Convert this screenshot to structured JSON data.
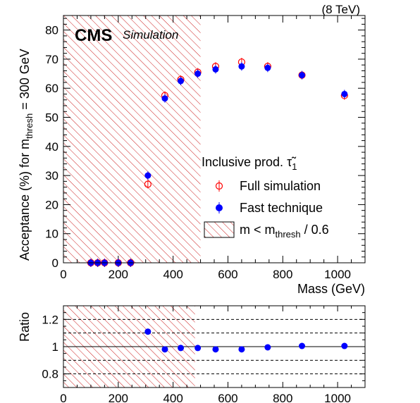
{
  "energy_label": "(8 TeV)",
  "cms_label": "CMS",
  "sim_label": "Simulation",
  "chart_data": [
    {
      "type": "scatter",
      "panel": "main",
      "xlabel": "Mass (GeV)",
      "ylabel_main": "Acceptance (%) for m",
      "ylabel_sub": "thresh",
      "ylabel_tail": " = 300 GeV",
      "xlim": [
        0,
        1100
      ],
      "ylim": [
        0,
        85
      ],
      "xticks": [
        0,
        200,
        400,
        600,
        800,
        1000
      ],
      "yticks": [
        0,
        10,
        20,
        30,
        40,
        50,
        60,
        70,
        80
      ],
      "hatched_region": [
        0,
        500
      ],
      "legend": {
        "title_text": "Inclusive prod. ",
        "title_symbol": "τ̃",
        "title_sub": "1",
        "hatch_main": "m < m",
        "hatch_sub": "thresh",
        "hatch_tail": " / 0.6"
      },
      "series": [
        {
          "name": "Full simulation",
          "color": "#ff0000",
          "marker": "open-circle",
          "x": [
            100,
            125,
            150,
            200,
            245,
            308,
            370,
            428,
            490,
            555,
            650,
            745,
            870,
            1025
          ],
          "y": [
            0,
            0,
            0,
            0,
            0,
            27,
            57.5,
            63,
            65.5,
            67.5,
            69,
            67.5,
            64.5,
            57.5
          ]
        },
        {
          "name": "Fast technique",
          "color": "#0000ff",
          "marker": "filled-circle",
          "x": [
            100,
            125,
            150,
            200,
            245,
            308,
            370,
            428,
            490,
            555,
            650,
            745,
            870,
            1025
          ],
          "y": [
            0,
            0,
            0,
            0,
            0,
            30,
            56.5,
            62.5,
            65,
            66.5,
            67.5,
            67,
            64.5,
            58
          ]
        }
      ]
    },
    {
      "type": "scatter",
      "panel": "ratio",
      "ylabel": "Ratio",
      "xlim": [
        0,
        1100
      ],
      "ylim": [
        0.7,
        1.3
      ],
      "xticks": [
        0,
        200,
        400,
        600,
        800,
        1000
      ],
      "yticks": [
        0.8,
        1,
        1.2
      ],
      "ytick_labels": [
        "0.8",
        "1",
        "1.2"
      ],
      "dashed_lines": [
        0.8,
        0.9,
        1.1,
        1.2
      ],
      "solid_line": 1,
      "hatched_region": [
        0,
        480
      ],
      "series": [
        {
          "color": "#0000ff",
          "marker": "filled-circle",
          "x": [
            308,
            370,
            428,
            490,
            555,
            650,
            745,
            870,
            1025
          ],
          "y": [
            1.11,
            0.98,
            0.99,
            0.99,
            0.98,
            0.98,
            0.995,
            1.005,
            1.005
          ]
        }
      ]
    }
  ]
}
